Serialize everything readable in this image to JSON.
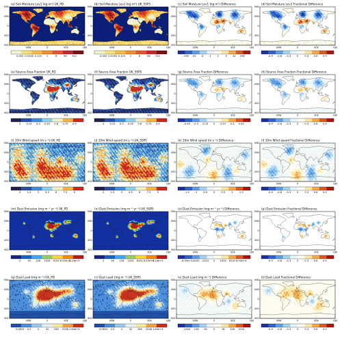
{
  "chart_data": {
    "type": "heatmap",
    "map_lat_ticks": [
      "90N",
      "45N",
      "0",
      "45S",
      "90S"
    ],
    "map_lon_ticks": [
      "90W",
      "0",
      "90E",
      "180"
    ],
    "rows": [
      {
        "variable": "soil_moisture",
        "panels": [
          {
            "label": "(a)",
            "title": "Soil Moisture Lev1 (kg m²) UK_PD",
            "scale": "sequential"
          },
          {
            "label": "(b)",
            "title": "Soil Moisture Lev1 (kg m²) UK_SSP5",
            "scale": "sequential"
          },
          {
            "label": "(c)",
            "title": "Soil Moisture Lev1 (kg m²) Difference",
            "scale": "diverging"
          },
          {
            "label": "(d)",
            "title": "Soil Moisture Lev1 Fractional Difference",
            "scale": "diverging"
          }
        ],
        "colorbars": [
          [
            "0.002",
            "0.0156",
            "0.125",
            "1",
            "8",
            "64",
            "512"
          ],
          [
            "0.002",
            "0.0156",
            "0.125",
            "1",
            "8",
            "64",
            "512"
          ],
          [
            "-256",
            "-32",
            "-4",
            "-1",
            "1",
            "4",
            "32",
            "256"
          ],
          [
            "-0.9",
            "-0.6",
            "-0.3",
            "0",
            "0.3",
            "0.6",
            "0.9"
          ]
        ]
      },
      {
        "variable": "source_area_fraction",
        "panels": [
          {
            "label": "(e)",
            "title": "Source Area Fraction UK_PD",
            "scale": "sequential"
          },
          {
            "label": "(f)",
            "title": "Source Area Fraction UK_SSP5",
            "scale": "sequential"
          },
          {
            "label": "(g)",
            "title": "Source Area Fraction Difference",
            "scale": "diverging"
          },
          {
            "label": "(h)",
            "title": "Source Area Fraction Fractional Difference",
            "scale": "diverging"
          }
        ],
        "colorbars": [
          [
            "0",
            "0.15",
            "0.3",
            "0.45",
            "0.6",
            "0.75",
            "0.9"
          ],
          [
            "0",
            "0.15",
            "0.3",
            "0.45",
            "0.6",
            "0.75",
            "0.9"
          ],
          [
            "-0.45",
            "-0.3",
            "-0.15",
            "0",
            "0.15",
            "0.3",
            "0.45"
          ],
          [
            "-0.9",
            "-0.6",
            "-0.3",
            "0",
            "0.3",
            "0.6",
            "0.9"
          ]
        ]
      },
      {
        "variable": "wind_speed",
        "panels": [
          {
            "label": "(i)",
            "title": "10m Wind speed (m s⁻¹) UK_PD",
            "scale": "sequential"
          },
          {
            "label": "(j)",
            "title": "10m Wind speed (m s⁻¹) UK_SSP5",
            "scale": "sequential"
          },
          {
            "label": "(k)",
            "title": "10m Wind speed (m s⁻¹) Difference",
            "scale": "diverging"
          },
          {
            "label": "(l)",
            "title": "10m Wind speed Fractional Difference",
            "scale": "diverging"
          }
        ],
        "colorbars": [
          [
            "0",
            "1.5",
            "3",
            "4.5",
            "6",
            "7.5",
            "9"
          ],
          [
            "0",
            "1.5",
            "3",
            "4.5",
            "6",
            "7.5",
            "9"
          ],
          [
            "-1.5",
            "-1",
            "-0.5",
            "0",
            "0.5",
            "1",
            "1.5"
          ],
          [
            "-0.9",
            "-0.6",
            "-0.3",
            "0",
            "0.3",
            "0.6",
            "0.9"
          ]
        ]
      },
      {
        "variable": "dust_emission",
        "panels": [
          {
            "label": "(m)",
            "title": "Dust Emission (mg m⁻² yr⁻¹) UK_PD",
            "scale": "sequential"
          },
          {
            "label": "(n)",
            "title": "Dust Emission (mg m⁻² yr⁻¹) UK_SSP5",
            "scale": "sequential"
          },
          {
            "label": "(o)",
            "title": "Dust Emission (mg m⁻² yr⁻¹) Difference",
            "scale": "diverging"
          },
          {
            "label": "(p)",
            "title": "Dust Emission Fractional Difference",
            "scale": "diverging"
          }
        ],
        "colorbars": [
          [
            "2",
            "16",
            "128",
            "1024",
            "8192",
            "6.55e+4",
            "5.24e+5"
          ],
          [
            "2",
            "16",
            "128",
            "1024",
            "8192",
            "6.55e+4",
            "5.24e+5"
          ],
          [
            "-6.55e+4",
            "-8192",
            "-1024",
            "0",
            "1024",
            "8192",
            "6.55e+4"
          ],
          [
            "-0.9",
            "-0.6",
            "-0.3",
            "0",
            "0.3",
            "0.6",
            "0.9"
          ]
        ]
      },
      {
        "variable": "dust_load",
        "panels": [
          {
            "label": "(q)",
            "title": "Dust Load (mg m⁻²) UK_PD",
            "scale": "sequential"
          },
          {
            "label": "(r)",
            "title": "Dust Load (mg m⁻²) UK_SSP5",
            "scale": "sequential"
          },
          {
            "label": "(s)",
            "title": "Dust Load (mg m⁻²) Difference",
            "scale": "diverging"
          },
          {
            "label": "(t)",
            "title": "Dust Load Fractional Difference",
            "scale": "diverging"
          }
        ],
        "colorbars": [
          [
            "0.0625",
            "0.5",
            "4",
            "32",
            "256",
            "2048",
            "1.64e+4"
          ],
          [
            "0.0625",
            "0.5",
            "4",
            "32",
            "256",
            "2048",
            "1.64e+4"
          ],
          [
            "-1024",
            "-128",
            "-16",
            "0",
            "16",
            "128",
            "1024"
          ],
          [
            "-0.9",
            "-0.6",
            "-0.3",
            "0",
            "0.3",
            "0.6",
            "0.9"
          ]
        ]
      }
    ]
  }
}
